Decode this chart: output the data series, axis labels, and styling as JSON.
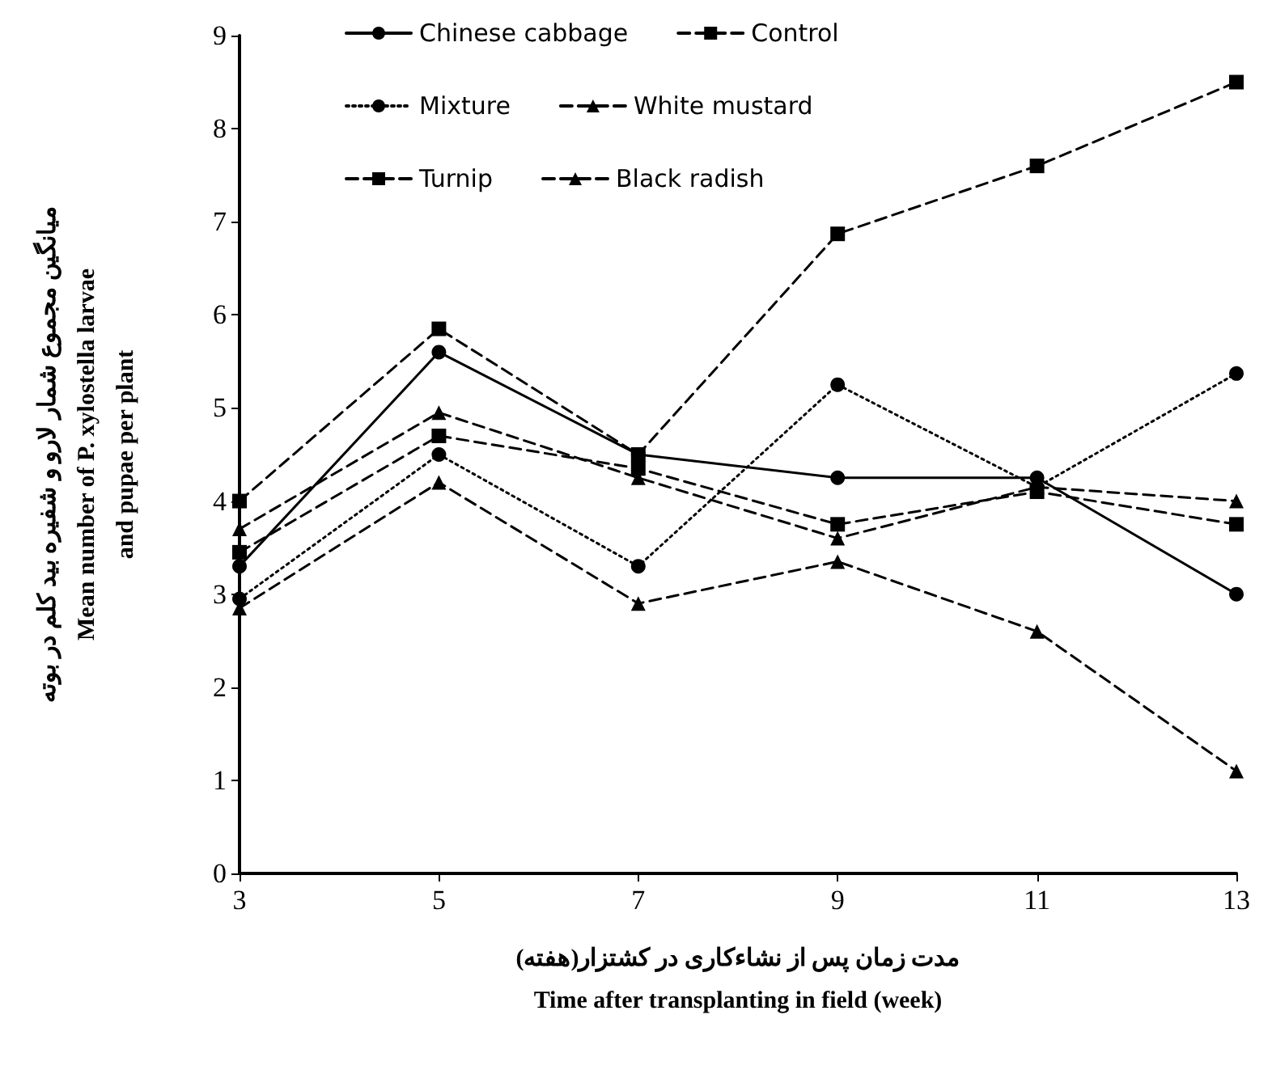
{
  "chart_data": {
    "type": "line",
    "xlabel": "مدت زمان پس از نشاءکاری در کشتزار(هفته)\nTime after transplanting in field (week)",
    "ylabel": "میانگین مجموع شمار لارو و شفیره بید کلم در بوته\nMean number of P. xylostella larvae\nand pupae per plant",
    "x": [
      3,
      5,
      7,
      9,
      11,
      13
    ],
    "series": [
      {
        "name": "Chinese cabbage",
        "color": "#000000",
        "marker": "circle",
        "line_style": "solid",
        "values": [
          3.3,
          5.6,
          4.5,
          4.25,
          4.25,
          3.0
        ]
      },
      {
        "name": "Control",
        "color": "#000000",
        "marker": "square",
        "line_style": "dashed",
        "values": [
          4.0,
          5.85,
          4.5,
          6.87,
          7.6,
          8.5
        ]
      },
      {
        "name": "Mixture",
        "color": "#000000",
        "marker": "circle",
        "line_style": "dotted",
        "values": [
          2.95,
          4.5,
          3.3,
          5.25,
          4.15,
          5.37
        ]
      },
      {
        "name": "White mustard",
        "color": "#000000",
        "marker": "triangle",
        "line_style": "dashed",
        "values": [
          2.85,
          4.2,
          2.9,
          3.35,
          2.6,
          1.1
        ]
      },
      {
        "name": "Turnip",
        "color": "#000000",
        "marker": "square",
        "line_style": "dashed",
        "values": [
          3.45,
          4.7,
          4.35,
          3.75,
          4.1,
          3.75
        ]
      },
      {
        "name": "Black radish",
        "color": "#000000",
        "marker": "triangle",
        "line_style": "dashed",
        "values": [
          3.7,
          4.95,
          4.25,
          3.6,
          4.15,
          4.0
        ]
      }
    ],
    "xlim": [
      3,
      13
    ],
    "xticks": [
      3,
      5,
      7,
      9,
      11,
      13
    ],
    "ylim": [
      0,
      9
    ],
    "yticks": [
      0,
      1,
      2,
      3,
      4,
      5,
      6,
      7,
      8,
      9
    ],
    "grid": false,
    "legend": "top"
  }
}
